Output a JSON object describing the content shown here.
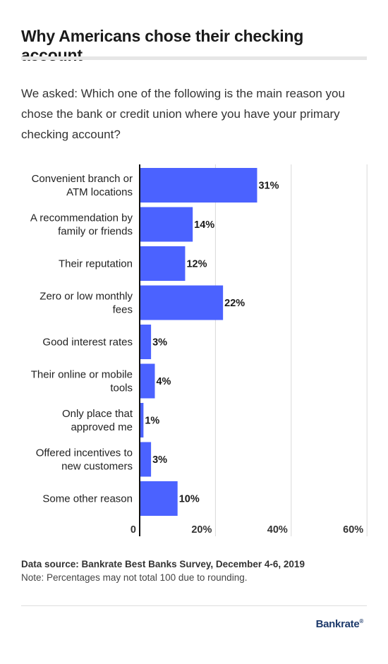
{
  "title": "Why Americans chose their checking account",
  "question": "We asked: Which one of the following is the main reason you chose the bank or credit union where you have your primary checking account?",
  "colors": {
    "bar": "#4b62ff",
    "grid": "#d9d9d9",
    "axis": "#111111",
    "title_rule": "#e6e6e6"
  },
  "chart_data": {
    "type": "bar",
    "orientation": "horizontal",
    "categories": [
      [
        "Convenient branch or",
        "ATM locations"
      ],
      [
        "A recommendation by",
        "family or friends"
      ],
      [
        "Their reputation"
      ],
      [
        "Zero or low monthly",
        "fees"
      ],
      [
        "Good interest rates"
      ],
      [
        "Their online or mobile",
        "tools"
      ],
      [
        "Only place that",
        "approved me"
      ],
      [
        "Offered incentives to",
        "new customers"
      ],
      [
        "Some other reason"
      ]
    ],
    "values": [
      31,
      14,
      12,
      22,
      3,
      4,
      1,
      3,
      10
    ],
    "value_labels": [
      "31%",
      "14%",
      "12%",
      "22%",
      "3%",
      "4%",
      "1%",
      "3%",
      "10%"
    ],
    "xlim": [
      0,
      60
    ],
    "xticks": [
      0,
      20,
      40,
      60
    ],
    "xtick_labels": [
      "0",
      "20%",
      "40%",
      "60%"
    ],
    "grid": true
  },
  "footer": {
    "source": "Data source: Bankrate Best Banks Survey, December 4-6, 2019",
    "note": "Note: Percentages may not total 100 due to rounding.",
    "logo": "Bankrate"
  }
}
